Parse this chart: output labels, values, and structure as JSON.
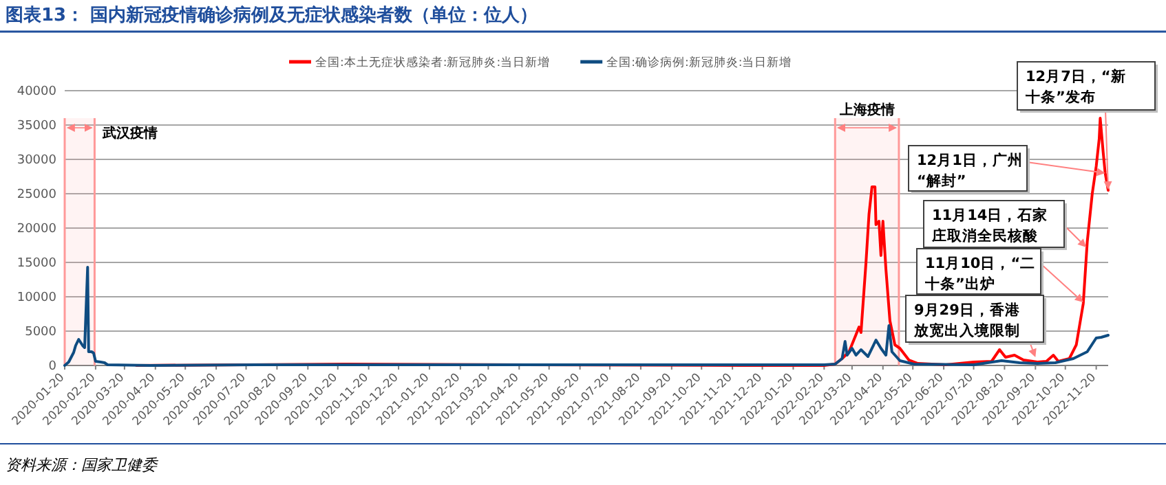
{
  "chart_data": {
    "type": "line",
    "title": "图表13： 国内新冠疫情确诊病例及无症状感染者数（单位：位人）",
    "xlim": [
      "2020-01-20",
      "2022-12-02"
    ],
    "xticks": [
      "2020-01-20",
      "2020-02-20",
      "2020-03-20",
      "2020-04-20",
      "2020-05-20",
      "2020-06-20",
      "2020-07-20",
      "2020-08-20",
      "2020-09-20",
      "2020-10-20",
      "2020-11-20",
      "2020-12-20",
      "2021-01-20",
      "2021-02-20",
      "2021-03-20",
      "2021-04-20",
      "2021-05-20",
      "2021-06-20",
      "2021-07-20",
      "2021-08-20",
      "2021-09-20",
      "2021-10-20",
      "2021-11-20",
      "2021-12-20",
      "2022-01-20",
      "2022-02-20",
      "2022-03-20",
      "2022-04-20",
      "2022-05-20",
      "2022-06-20",
      "2022-07-20",
      "2022-08-20",
      "2022-09-20",
      "2022-10-20",
      "2022-11-20"
    ],
    "ylim": [
      0,
      40000
    ],
    "yticks": [
      0,
      5000,
      10000,
      15000,
      20000,
      25000,
      30000,
      35000,
      40000
    ],
    "grid": "y",
    "legend": "top",
    "line_style": "solid",
    "marker": "none",
    "series": [
      {
        "name": "全国:本土无症状感染者:新冠肺炎:当日新增",
        "color": "#ff0000",
        "x": [
          "2020-04-01",
          "2020-10-25",
          "2021-12-01",
          "2022-02-20",
          "2022-03-03",
          "2022-03-10",
          "2022-03-17",
          "2022-03-24",
          "2022-03-27",
          "2022-03-29",
          "2022-04-03",
          "2022-04-06",
          "2022-04-09",
          "2022-04-12",
          "2022-04-13",
          "2022-04-16",
          "2022-04-18",
          "2022-04-20",
          "2022-04-23",
          "2022-04-27",
          "2022-05-02",
          "2022-05-07",
          "2022-05-16",
          "2022-05-25",
          "2022-06-22",
          "2022-07-20",
          "2022-08-07",
          "2022-08-15",
          "2022-08-21",
          "2022-08-30",
          "2022-09-08",
          "2022-09-22",
          "2022-10-01",
          "2022-10-08",
          "2022-10-13",
          "2022-10-24",
          "2022-10-31",
          "2022-11-07",
          "2022-11-11",
          "2022-11-16",
          "2022-11-20",
          "2022-11-23",
          "2022-11-24",
          "2022-11-27",
          "2022-11-29",
          "2022-12-02"
        ],
        "values": [
          0,
          200,
          0,
          0,
          200,
          1000,
          2000,
          4500,
          5600,
          4800,
          15000,
          22000,
          26000,
          26000,
          20500,
          21000,
          16000,
          21000,
          14000,
          6500,
          3000,
          2500,
          800,
          300,
          100,
          500,
          600,
          2300,
          1200,
          1500,
          800,
          500,
          600,
          1500,
          600,
          1000,
          3000,
          9000,
          18000,
          25000,
          29000,
          33000,
          36000,
          31000,
          28000,
          25500
        ]
      },
      {
        "name": "全国:确诊病例:新冠肺炎:当日新增",
        "color": "#0f4c81",
        "x": [
          "2020-01-20",
          "2020-01-24",
          "2020-01-29",
          "2020-01-31",
          "2020-02-03",
          "2020-02-07",
          "2020-02-09",
          "2020-02-12",
          "2020-02-13",
          "2020-02-16",
          "2020-02-18",
          "2020-02-20",
          "2020-02-25",
          "2020-02-29",
          "2020-03-03",
          "2020-04-15",
          "2020-07-30",
          "2021-01-10",
          "2022-02-20",
          "2022-03-03",
          "2022-03-10",
          "2022-03-13",
          "2022-03-15",
          "2022-03-20",
          "2022-03-24",
          "2022-03-29",
          "2022-04-05",
          "2022-04-13",
          "2022-04-18",
          "2022-04-23",
          "2022-04-26",
          "2022-04-29",
          "2022-05-07",
          "2022-05-21",
          "2022-07-20",
          "2022-08-17",
          "2022-09-04",
          "2022-09-22",
          "2022-10-10",
          "2022-10-28",
          "2022-11-11",
          "2022-11-20",
          "2022-11-25",
          "2022-12-02"
        ],
        "values": [
          0,
          500,
          1900,
          2900,
          3800,
          2900,
          2600,
          14300,
          2000,
          2000,
          1800,
          600,
          500,
          400,
          100,
          0,
          100,
          100,
          100,
          200,
          1000,
          3500,
          1500,
          2500,
          1500,
          2300,
          1300,
          3700,
          2500,
          1500,
          5800,
          2000,
          700,
          200,
          100,
          700,
          400,
          300,
          400,
          1000,
          2000,
          4000,
          4100,
          4400
        ]
      }
    ],
    "bands": [
      {
        "axis": "x",
        "from": "2020-01-20",
        "to": "2020-02-19",
        "label": "武汉疫情",
        "color": "#ff9999"
      },
      {
        "axis": "x",
        "from": "2022-03-03",
        "to": "2022-05-06",
        "label": "上海疫情",
        "color": "#ff9999"
      }
    ],
    "annotations": [
      {
        "text": "12月7日，“新十条”发布",
        "x": "2022-12-02",
        "y": 25600
      },
      {
        "text": "12月1日，广州“解封”",
        "x": "2022-11-29",
        "y": 28000
      },
      {
        "text": "11月14日，石家庄取消全民核酸",
        "x": "2022-11-10",
        "y": 17200
      },
      {
        "text": "11月10日，“二十条”出炉",
        "x": "2022-11-07",
        "y": 9200
      },
      {
        "text": "9月29日，香港放宽出入境限制",
        "x": "2022-09-20",
        "y": 1200
      },
      "资料来源：国家卫健委"
    ]
  }
}
